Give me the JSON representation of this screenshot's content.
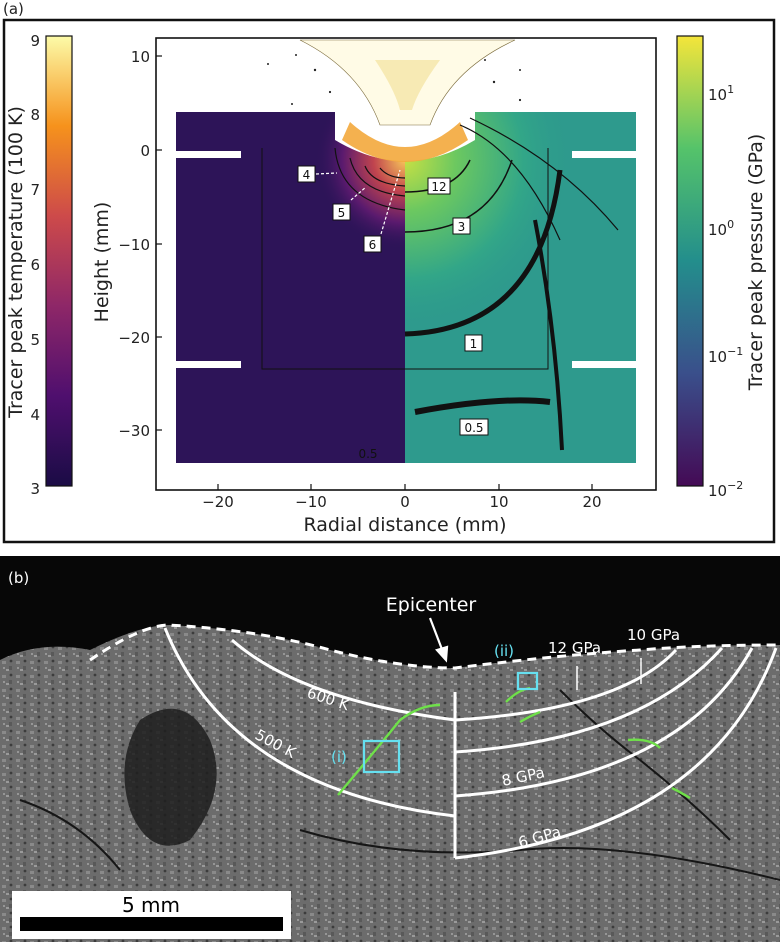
{
  "panel_a": {
    "letter": "(a)",
    "left_colorbar": {
      "title": "Tracer peak temperature (100 K)",
      "ticks": [
        "9",
        "8",
        "7",
        "6",
        "5",
        "4",
        "3"
      ]
    },
    "right_colorbar": {
      "title": "Tracer peak pressure (GPa)",
      "ticks": [
        {
          "base": "10",
          "exp": "1"
        },
        {
          "base": "10",
          "exp": "0"
        },
        {
          "base": "10",
          "exp": "−1"
        },
        {
          "base": "10",
          "exp": "−2"
        }
      ]
    },
    "x_axis": {
      "title": "Radial distance (mm)",
      "ticks": [
        "−20",
        "−10",
        "0",
        "10",
        "20"
      ]
    },
    "y_axis": {
      "title": "Height (mm)",
      "ticks": [
        "10",
        "0",
        "−10",
        "−20",
        "−30"
      ]
    },
    "contour_labels_left": [
      "4",
      "5",
      "6",
      "0.5"
    ],
    "contour_labels_right": [
      "12",
      "3",
      "1",
      "0.5"
    ]
  },
  "panel_b": {
    "letter": "(b)",
    "epicenter_label": "Epicenter",
    "temperature_labels": [
      "600 K",
      "500 K"
    ],
    "pressure_labels": [
      "12 GPa",
      "10 GPa",
      "8 GPa",
      "6 GPa"
    ],
    "roi_labels": [
      "(i)",
      "(ii)"
    ],
    "scale_bar_label": "5 mm",
    "colors": {
      "contour": "#ffffff",
      "roi": "#66e0f0",
      "vein": "#6fe04a"
    }
  }
}
